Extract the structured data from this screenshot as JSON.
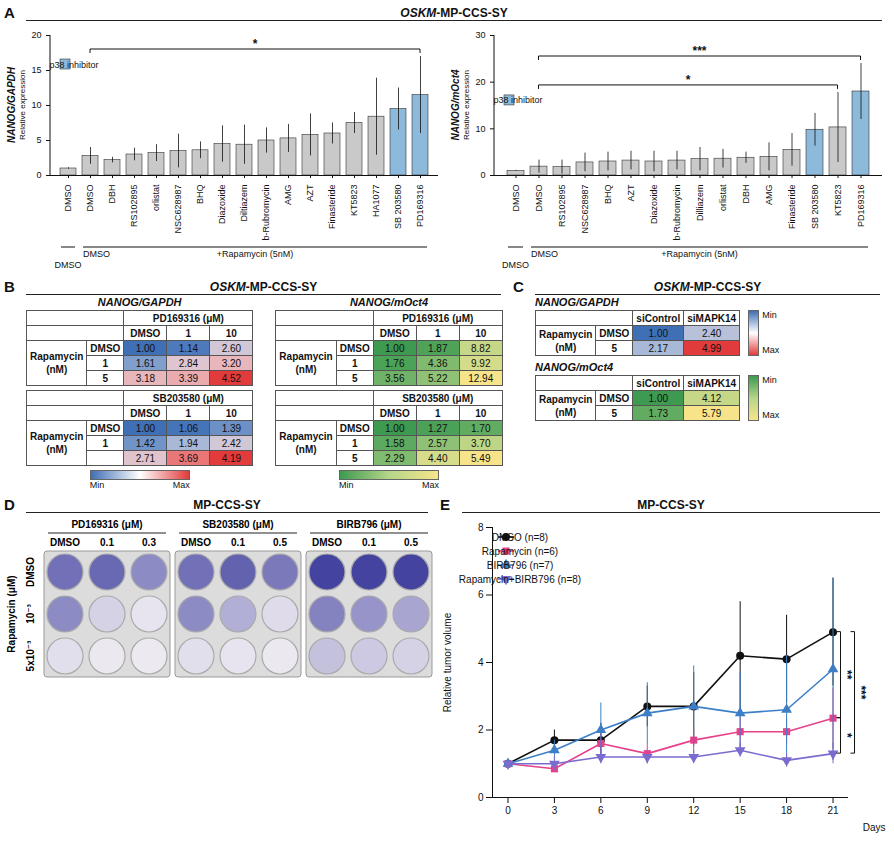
{
  "chart_data": [
    {
      "type": "bar",
      "panel": "A",
      "categories": [
        "DMSO",
        "DMSO",
        "DBH",
        "RS102895",
        "orlistat",
        "NSC628987",
        "BHQ",
        "Diazoxide",
        "Diltiazem",
        "b-Rubromycin",
        "AMG",
        "AZT",
        "Finasteride",
        "KT5823",
        "HA1077",
        "SB 203580",
        "PD169316"
      ],
      "values": [
        1.0,
        2.8,
        2.2,
        3.0,
        3.2,
        3.5,
        3.6,
        4.5,
        4.4,
        5.0,
        5.3,
        5.8,
        6.0,
        7.5,
        8.4,
        9.5,
        11.5
      ],
      "errors": [
        0.1,
        1.2,
        0.4,
        0.9,
        1.2,
        2.4,
        1.2,
        2.6,
        2.8,
        1.8,
        2.0,
        3.0,
        1.5,
        1.5,
        5.5,
        3.0,
        5.5
      ],
      "colors": [
        "#c9c9c9",
        "#c9c9c9",
        "#c9c9c9",
        "#c9c9c9",
        "#c9c9c9",
        "#c9c9c9",
        "#c9c9c9",
        "#c9c9c9",
        "#c9c9c9",
        "#c9c9c9",
        "#c9c9c9",
        "#c9c9c9",
        "#c9c9c9",
        "#c9c9c9",
        "#c9c9c9",
        "#8db9db",
        "#8db9db"
      ],
      "ylim": [
        0,
        20
      ],
      "yticks": [
        0,
        5,
        10,
        15,
        20
      ],
      "y_label": "NANOG/GAPDH",
      "y_sublabel": "Relative expression",
      "legend": "top-left",
      "legend_items": [
        {
          "label": "p38 inhibitor",
          "color": "#8db9db"
        }
      ],
      "annotations": {
        "brackets": [
          {
            "from": 1,
            "to": 16,
            "label": "*"
          }
        ],
        "groups": [
          {
            "from": 0,
            "to": 0,
            "label": "DMSO"
          },
          {
            "from": 1,
            "to": 16,
            "label": "+Rapamycin (5nM)",
            "first_label": "DMSO"
          }
        ]
      }
    },
    {
      "type": "bar",
      "panel": "A",
      "categories": [
        "DMSO",
        "DMSO",
        "RS102895",
        "NSC628987",
        "BHQ",
        "AZT",
        "Diazoxide",
        "b-Rubromycin",
        "Dilliazem",
        "orlistat",
        "DBH",
        "AMG",
        "Finasteride",
        "SB 203580",
        "KT5823",
        "PD169316"
      ],
      "values": [
        1.0,
        1.9,
        1.8,
        2.8,
        3.0,
        3.2,
        3.0,
        3.2,
        3.5,
        3.6,
        3.8,
        4.0,
        5.5,
        9.8,
        10.3,
        18.0
      ],
      "errors": [
        0.1,
        1.4,
        1.5,
        2.0,
        2.0,
        2.0,
        2.2,
        2.0,
        2.5,
        2.0,
        1.2,
        3.0,
        3.5,
        3.5,
        7.5,
        6.0
      ],
      "colors": [
        "#c9c9c9",
        "#c9c9c9",
        "#c9c9c9",
        "#c9c9c9",
        "#c9c9c9",
        "#c9c9c9",
        "#c9c9c9",
        "#c9c9c9",
        "#c9c9c9",
        "#c9c9c9",
        "#c9c9c9",
        "#c9c9c9",
        "#c9c9c9",
        "#8db9db",
        "#c9c9c9",
        "#8db9db"
      ],
      "ylim": [
        0,
        30
      ],
      "yticks": [
        0,
        10,
        20,
        30
      ],
      "y_label": "NANOG/mOct4",
      "y_sublabel": "Relative expression",
      "legend": "top-left",
      "legend_items": [
        {
          "label": "p38 inhibitor",
          "color": "#8db9db"
        }
      ],
      "annotations": {
        "brackets": [
          {
            "from": 1,
            "to": 14,
            "label": "*"
          },
          {
            "from": 1,
            "to": 15,
            "label": "***"
          }
        ],
        "groups": [
          {
            "from": 0,
            "to": 0,
            "label": "DMSO"
          },
          {
            "from": 1,
            "to": 15,
            "label": "+Rapamycin (5nM)",
            "first_label": "DMSO"
          }
        ]
      }
    },
    {
      "type": "line",
      "panel": "E",
      "title": "MP-CCS-SY",
      "x": [
        0,
        3,
        6,
        9,
        12,
        15,
        18,
        21
      ],
      "xlim": [
        -1,
        22
      ],
      "xticks": [
        0,
        3,
        6,
        9,
        12,
        15,
        18,
        21
      ],
      "ylim": [
        0,
        8
      ],
      "yticks": [
        0,
        2,
        4,
        6,
        8
      ],
      "xlabel": "Days",
      "ylabel": "Relative tumor volume",
      "legend": "top-left",
      "series": [
        {
          "name": "DMSO (n=8)",
          "color": "#111111",
          "marker": "circle",
          "values": [
            1.0,
            1.7,
            1.7,
            2.7,
            2.7,
            4.2,
            4.1,
            4.9
          ],
          "errors": [
            0,
            0.3,
            0.5,
            0.6,
            1.0,
            1.6,
            1.3,
            1.6
          ]
        },
        {
          "name": "Rapamycin (n=6)",
          "color": "#e6418a",
          "marker": "square",
          "values": [
            1.0,
            0.85,
            1.6,
            1.3,
            1.7,
            1.95,
            1.95,
            2.35
          ],
          "errors": [
            0,
            0.1,
            0.3,
            0.3,
            0.4,
            0.5,
            0.4,
            0.9
          ]
        },
        {
          "name": "BIRB796 (n=7)",
          "color": "#3d7fc6",
          "marker": "triangle",
          "values": [
            1.0,
            1.4,
            2.0,
            2.5,
            2.7,
            2.5,
            2.6,
            3.8
          ],
          "errors": [
            0,
            0.3,
            0.8,
            0.9,
            1.2,
            1.2,
            1.6,
            2.7
          ]
        },
        {
          "name": "Rapamycin+BIRB796 (n=8)",
          "color": "#7a6ccf",
          "marker": "triangle-down",
          "values": [
            1.0,
            1.0,
            1.2,
            1.2,
            1.2,
            1.4,
            1.1,
            1.3
          ],
          "errors": [
            0,
            0.2,
            0.2,
            0.2,
            0.2,
            0.2,
            0.2,
            0.3
          ]
        }
      ],
      "annotations": {
        "brackets": [
          {
            "from": "DMSO (n=8)",
            "to": "Rapamycin (n=6)",
            "label": "**"
          },
          {
            "from": "DMSO (n=8)",
            "to": "Rapamycin+BIRB796 (n=8)",
            "label": "***"
          },
          {
            "from": "Rapamycin (n=6)",
            "to": "Rapamycin+BIRB796 (n=8)",
            "label": "*"
          }
        ]
      }
    }
  ],
  "panels": {
    "A": {
      "letter": "A",
      "title": "OSKM-MP-CCS-SY",
      "title_italic": "OSKM"
    },
    "B": {
      "letter": "B",
      "title": "OSKM-MP-CCS-SY",
      "title_italic": "OSKM",
      "row_title": "Rapamycin (nM)",
      "groups": [
        {
          "ratio": "NANOG/GAPDH",
          "colors": [
            "#3f6fb5",
            "#ffffff",
            "#e23b3b"
          ],
          "colorbar": [
            "Min",
            "Max"
          ],
          "tables": [
            {
              "drug": "PD169316 (μM)",
              "columns": [
                "DMSO",
                "1",
                "10"
              ],
              "rows": [
                "DMSO",
                "1",
                "5"
              ],
              "cells": [
                [
                  "1.00",
                  "1.14",
                  "2.60"
                ],
                [
                  "1.61",
                  "2.84",
                  "3.20"
                ],
                [
                  "3.18",
                  "3.39",
                  "4.52"
                ]
              ]
            },
            {
              "drug": "SB203580 (μM)",
              "columns": [
                "DMSO",
                "1",
                "10"
              ],
              "rows": [
                "DMSO",
                "1",
                null
              ],
              "cells": [
                [
                  "1.00",
                  "1.06",
                  "1.39"
                ],
                [
                  "1.42",
                  "1.94",
                  "2.42"
                ],
                [
                  "2.71",
                  "3.69",
                  "4.19"
                ]
              ]
            }
          ]
        },
        {
          "ratio": "NANOG/mOct4",
          "colors": [
            "#3d9a50",
            "#b5d68a",
            "#f7e48a"
          ],
          "colorbar": [
            "Min",
            "Max"
          ],
          "tables": [
            {
              "drug": "PD169316 (μM)",
              "columns": [
                "DMSO",
                "1",
                "10"
              ],
              "rows": [
                "DMSO",
                "1",
                "5"
              ],
              "cells": [
                [
                  "1.00",
                  "1.87",
                  "8.82"
                ],
                [
                  "1.76",
                  "4.36",
                  "9.92"
                ],
                [
                  "3.56",
                  "5.22",
                  "12.94"
                ]
              ]
            },
            {
              "drug": "SB203580 (μM)",
              "columns": [
                "DMSO",
                "1",
                "10"
              ],
              "rows": [
                "DMSO",
                "1",
                "5"
              ],
              "cells": [
                [
                  "1.00",
                  "1.27",
                  "1.70"
                ],
                [
                  "1.58",
                  "2.57",
                  "3.70"
                ],
                [
                  "2.29",
                  "4.40",
                  "5.49"
                ]
              ]
            }
          ]
        }
      ]
    },
    "C": {
      "letter": "C",
      "title": "OSKM-MP-CCS-SY",
      "title_italic": "OSKM",
      "row_title": "Rapamycin (nM)",
      "tables": [
        {
          "ratio": "NANOG/GAPDH",
          "columns": [
            "siControl",
            "siMAPK14"
          ],
          "rows": [
            "DMSO",
            "5"
          ],
          "cells": [
            [
              "1.00",
              "2.40"
            ],
            [
              "2.17",
              "4.99"
            ]
          ],
          "colors": [
            "#3f6fb5",
            "#ffffff",
            "#e23b3b"
          ],
          "colorbar": [
            "Min",
            "Max"
          ]
        },
        {
          "ratio": "NANOG/mOct4",
          "columns": [
            "siControl",
            "siMAPK14"
          ],
          "rows": [
            "DMSO",
            "5"
          ],
          "cells": [
            [
              "1.00",
              "4.12"
            ],
            [
              "1.73",
              "5.79"
            ]
          ],
          "colors": [
            "#3d9a50",
            "#b5d68a",
            "#f7e48a"
          ],
          "colorbar": [
            "Min",
            "Max"
          ]
        }
      ]
    },
    "D": {
      "letter": "D",
      "title": "MP-CCS-SY",
      "row_title": "Rapamycin (μM)",
      "row_labels": [
        "DMSO",
        "10⁻³",
        "5x10⁻³"
      ],
      "colors": [
        "#f1edf3",
        "#3b3b9c"
      ],
      "plates": [
        {
          "title": "PD169316 (μM)",
          "columns": [
            "DMSO",
            "0.1",
            "0.3"
          ],
          "stain": [
            [
              0.7,
              0.75,
              0.55
            ],
            [
              0.55,
              0.15,
              0.05
            ],
            [
              0.08,
              0.03,
              0.02
            ]
          ]
        },
        {
          "title": "SB203580 (μM)",
          "columns": [
            "DMSO",
            "0.1",
            "0.5"
          ],
          "stain": [
            [
              0.7,
              0.78,
              0.65
            ],
            [
              0.55,
              0.35,
              0.1
            ],
            [
              0.08,
              0.05,
              0.03
            ]
          ]
        },
        {
          "title": "BIRB796 (μM)",
          "columns": [
            "DMSO",
            "0.1",
            "0.5"
          ],
          "stain": [
            [
              0.95,
              0.95,
              0.95
            ],
            [
              0.6,
              0.5,
              0.4
            ],
            [
              0.25,
              0.2,
              0.15
            ]
          ]
        }
      ]
    },
    "E": {
      "letter": "E"
    }
  }
}
